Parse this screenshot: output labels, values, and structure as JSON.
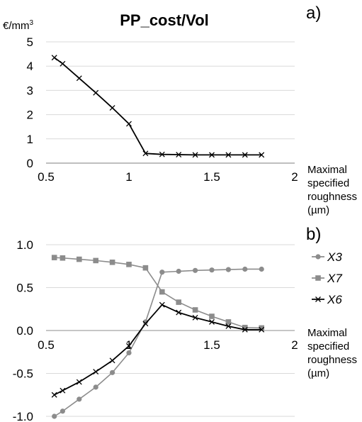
{
  "chart_data": [
    {
      "type": "line",
      "panel_label": "a)",
      "title": "PP_cost/Vol",
      "ylabel": "€/mm",
      "ylabel_sup": "3",
      "xlabel": [
        "Maximal",
        "specified",
        "roughness",
        "(µm)"
      ],
      "xlim": [
        0.5,
        2
      ],
      "ylim": [
        0,
        5
      ],
      "xticks": [
        "0.5",
        "1",
        "1.5",
        "2"
      ],
      "yticks": [
        "0",
        "1",
        "2",
        "3",
        "4",
        "5"
      ],
      "grid": "horizontal",
      "series": [
        {
          "color": "#000000",
          "marker": "x",
          "points": [
            [
              0.55,
              4.35
            ],
            [
              0.6,
              4.1
            ],
            [
              0.7,
              3.5
            ],
            [
              0.8,
              2.9
            ],
            [
              0.9,
              2.28
            ],
            [
              1.0,
              1.62
            ],
            [
              1.1,
              0.4
            ],
            [
              1.2,
              0.36
            ],
            [
              1.3,
              0.35
            ],
            [
              1.4,
              0.34
            ],
            [
              1.5,
              0.34
            ],
            [
              1.6,
              0.34
            ],
            [
              1.7,
              0.34
            ],
            [
              1.8,
              0.34
            ]
          ]
        }
      ]
    },
    {
      "type": "line",
      "panel_label": "b)",
      "xlabel": [
        "Maximal",
        "specified",
        "roughness",
        "(µm)"
      ],
      "xlim": [
        0.5,
        2
      ],
      "ylim": [
        -1,
        1
      ],
      "xticks": [
        "0.5",
        "1",
        "1.5",
        "2"
      ],
      "yticks": [
        "-1.0",
        "-0.5",
        "0.0",
        "0.5",
        "1.0"
      ],
      "grid": "horizontal",
      "legend": "right",
      "series": [
        {
          "name": "X3",
          "color": "#8c8c8c",
          "marker": "circle",
          "points": [
            [
              0.55,
              -1.0
            ],
            [
              0.6,
              -0.94
            ],
            [
              0.7,
              -0.8
            ],
            [
              0.8,
              -0.66
            ],
            [
              0.9,
              -0.49
            ],
            [
              1.0,
              -0.26
            ],
            [
              1.1,
              0.1
            ],
            [
              1.2,
              0.68
            ],
            [
              1.3,
              0.69
            ],
            [
              1.4,
              0.7
            ],
            [
              1.5,
              0.705
            ],
            [
              1.6,
              0.71
            ],
            [
              1.7,
              0.715
            ],
            [
              1.8,
              0.715
            ]
          ]
        },
        {
          "name": "X7",
          "color": "#8c8c8c",
          "marker": "square",
          "points": [
            [
              0.55,
              0.85
            ],
            [
              0.6,
              0.845
            ],
            [
              0.7,
              0.83
            ],
            [
              0.8,
              0.815
            ],
            [
              0.9,
              0.795
            ],
            [
              1.0,
              0.77
            ],
            [
              1.1,
              0.73
            ],
            [
              1.2,
              0.45
            ],
            [
              1.3,
              0.33
            ],
            [
              1.4,
              0.24
            ],
            [
              1.5,
              0.165
            ],
            [
              1.6,
              0.1
            ],
            [
              1.7,
              0.035
            ],
            [
              1.8,
              0.03
            ]
          ]
        },
        {
          "name": "X6",
          "color": "#000000",
          "marker": "x",
          "points": [
            [
              0.55,
              -0.75
            ],
            [
              0.6,
              -0.7
            ],
            [
              0.7,
              -0.6
            ],
            [
              0.8,
              -0.48
            ],
            [
              0.9,
              -0.35
            ],
            [
              1.0,
              -0.18
            ],
            [
              1.1,
              0.08
            ],
            [
              1.2,
              0.3
            ],
            [
              1.3,
              0.21
            ],
            [
              1.4,
              0.15
            ],
            [
              1.5,
              0.1
            ],
            [
              1.6,
              0.05
            ],
            [
              1.7,
              0.01
            ],
            [
              1.8,
              0.01
            ]
          ]
        }
      ]
    }
  ]
}
